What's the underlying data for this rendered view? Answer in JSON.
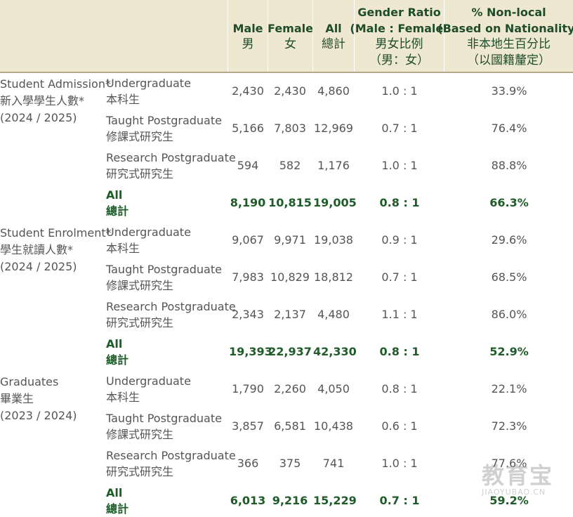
{
  "header": {
    "male": [
      "Male",
      "男"
    ],
    "female": [
      "Female",
      "女"
    ],
    "all": [
      "All",
      "總計"
    ],
    "ratio": [
      "Gender Ratio",
      "(Male : Female)",
      "男女比例",
      "（男：女）"
    ],
    "pct": [
      "% Non-local",
      "(Based on Nationality)",
      "非本地生百分比",
      "（以國籍釐定）"
    ]
  },
  "groups": [
    {
      "label": [
        "Student Admission*",
        "新入學學生人數*",
        "(2024 / 2025)"
      ],
      "rows": [
        {
          "level": [
            "Undergraduate",
            "本科生"
          ],
          "male": "2,430",
          "female": "2,430",
          "all": "4,860",
          "ratio": "1.0 : 1",
          "pct": "33.9%"
        },
        {
          "level": [
            "Taught Postgraduate",
            "修課式研究生"
          ],
          "male": "5,166",
          "female": "7,803",
          "all": "12,969",
          "ratio": "0.7 : 1",
          "pct": "76.4%"
        },
        {
          "level": [
            "Research Postgraduate",
            "研究式研究生"
          ],
          "male": "594",
          "female": "582",
          "all": "1,176",
          "ratio": "1.0 : 1",
          "pct": "88.8%"
        },
        {
          "level": [
            "All",
            "總計"
          ],
          "male": "8,190",
          "female": "10,815",
          "all": "19,005",
          "ratio": "0.8 : 1",
          "pct": "66.3%",
          "total": true
        }
      ]
    },
    {
      "label": [
        "Student Enrolment*",
        "學生就讀人數*",
        "(2024 / 2025)"
      ],
      "rows": [
        {
          "level": [
            "Undergraduate",
            "本科生"
          ],
          "male": "9,067",
          "female": "9,971",
          "all": "19,038",
          "ratio": "0.9 : 1",
          "pct": "29.6%"
        },
        {
          "level": [
            "Taught Postgraduate",
            "修課式研究生"
          ],
          "male": "7,983",
          "female": "10,829",
          "all": "18,812",
          "ratio": "0.7 : 1",
          "pct": "68.5%"
        },
        {
          "level": [
            "Research Postgraduate",
            "研究式研究生"
          ],
          "male": "2,343",
          "female": "2,137",
          "all": "4,480",
          "ratio": "1.1 : 1",
          "pct": "86.0%"
        },
        {
          "level": [
            "All",
            "總計"
          ],
          "male": "19,393",
          "female": "22,937",
          "all": "42,330",
          "ratio": "0.8 : 1",
          "pct": "52.9%",
          "total": true
        }
      ]
    },
    {
      "label": [
        "Graduates",
        "畢業生",
        "(2023 / 2024)"
      ],
      "rows": [
        {
          "level": [
            "Undergraduate",
            "本科生"
          ],
          "male": "1,790",
          "female": "2,260",
          "all": "4,050",
          "ratio": "0.8 : 1",
          "pct": "22.1%"
        },
        {
          "level": [
            "Taught Postgraduate",
            "修課式研究生"
          ],
          "male": "3,857",
          "female": "6,581",
          "all": "10,438",
          "ratio": "0.6 : 1",
          "pct": "72.3%"
        },
        {
          "level": [
            "Research Postgraduate",
            "研究式研究生"
          ],
          "male": "366",
          "female": "375",
          "all": "741",
          "ratio": "1.0 : 1",
          "pct": "77.6%"
        },
        {
          "level": [
            "All",
            "總計"
          ],
          "male": "6,013",
          "female": "9,216",
          "all": "15,229",
          "ratio": "0.7 : 1",
          "pct": "59.2%",
          "total": true
        }
      ]
    }
  ],
  "watermark": {
    "text": "教育宝",
    "sub": "JIAOYUBAO.CN"
  }
}
